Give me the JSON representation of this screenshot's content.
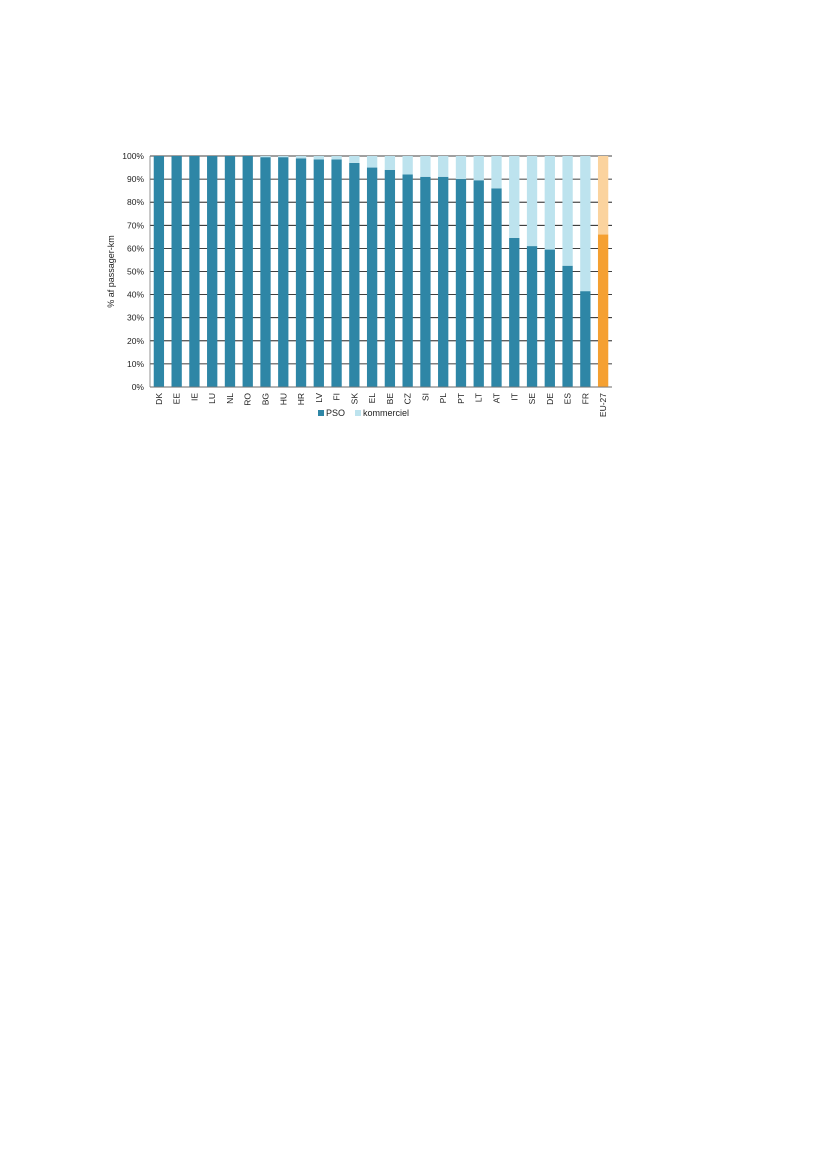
{
  "chart_data": {
    "type": "bar",
    "stacked": true,
    "ylabel": "% af passager-km",
    "ylim": [
      0,
      100
    ],
    "yticks": [
      "0%",
      "10%",
      "20%",
      "30%",
      "40%",
      "50%",
      "60%",
      "70%",
      "80%",
      "90%",
      "100%"
    ],
    "grid": true,
    "legend": "bottom",
    "categories": [
      "DK",
      "EE",
      "IE",
      "LU",
      "NL",
      "RO",
      "BG",
      "HU",
      "HR",
      "LV",
      "FI",
      "SK",
      "EL",
      "BE",
      "CZ",
      "SI",
      "PL",
      "PT",
      "LT",
      "AT",
      "IT",
      "SE",
      "DE",
      "ES",
      "FR",
      "EU-27"
    ],
    "series": [
      {
        "name": "PSO",
        "color": "#2E86A6",
        "values": [
          100,
          100,
          100,
          100,
          100,
          100,
          99.5,
          99.5,
          99,
          98.5,
          98.5,
          97,
          95,
          94,
          92,
          91,
          91,
          90,
          89.5,
          86,
          64.5,
          61,
          59.5,
          52.5,
          41.5,
          66
        ]
      },
      {
        "name": "kommerciel",
        "color": "#BDE3EE",
        "values": [
          0,
          0,
          0,
          0,
          0,
          0,
          0.5,
          0.5,
          1,
          1.5,
          1.5,
          3,
          5,
          6,
          8,
          9,
          9,
          10,
          10.5,
          14,
          35.5,
          39,
          40.5,
          47.5,
          58.5,
          34
        ]
      }
    ],
    "highlight": {
      "category": "EU-27",
      "colors": [
        "#F5A031",
        "#FBD39E"
      ]
    }
  }
}
